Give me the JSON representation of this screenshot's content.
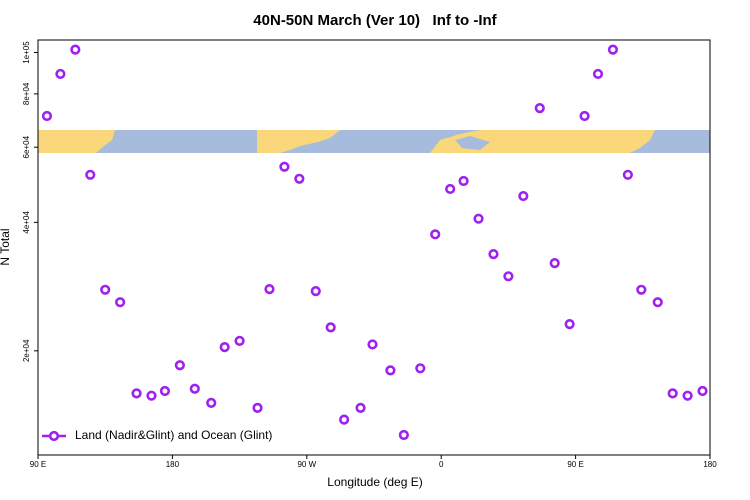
{
  "chart_data": {
    "type": "scatter",
    "title": "40N-50N March (Ver 10)   Inf to -Inf",
    "x_label": "Longitude (deg E)",
    "y_label": "N Total",
    "log_y": true,
    "legend_position": "bottom-left",
    "xlim": [
      90,
      540
    ],
    "ylim": [
      11400,
      107000
    ],
    "xticks": [
      {
        "value": 90,
        "label": "90 E"
      },
      180,
      {
        "value": 270,
        "label": "90 W"
      },
      {
        "value": 360,
        "label": "0"
      },
      {
        "value": 450,
        "label": "90 E"
      },
      {
        "value": 540,
        "label": "180"
      }
    ],
    "yticks": [
      {
        "value": 20000,
        "label": "2e+04"
      },
      {
        "value": 40000,
        "label": "4e+04"
      },
      {
        "value": 60000,
        "label": "6e+04"
      },
      {
        "value": 80000,
        "label": "8e+04"
      },
      {
        "value": 100000,
        "label": "1e+05"
      }
    ],
    "series": [
      {
        "name": "Land (Nadir&Glint) and Ocean (Glint)",
        "color": "#a020f0",
        "x": [
          96,
          105,
          115,
          125,
          135,
          145,
          156,
          166,
          175,
          185,
          195,
          206,
          215,
          225,
          237,
          245,
          255,
          265,
          276,
          286,
          295,
          306,
          314,
          326,
          335,
          346,
          356,
          366,
          375,
          385,
          395,
          405,
          415,
          426,
          436,
          446,
          456,
          465,
          475,
          485,
          494,
          505,
          515,
          525,
          535
        ],
        "values": [
          71000,
          89100,
          101600,
          51700,
          27800,
          26000,
          15900,
          15700,
          16100,
          18500,
          16300,
          15100,
          20400,
          21100,
          14700,
          27900,
          54000,
          50600,
          27600,
          22700,
          13800,
          14700,
          20700,
          18000,
          12700,
          18200,
          37500,
          47900,
          50000,
          40800,
          33700,
          29900,
          46100,
          74100,
          32100,
          23100,
          71000,
          89100,
          101600,
          51700,
          27800,
          26000,
          15900,
          15700,
          16100
        ]
      }
    ]
  }
}
